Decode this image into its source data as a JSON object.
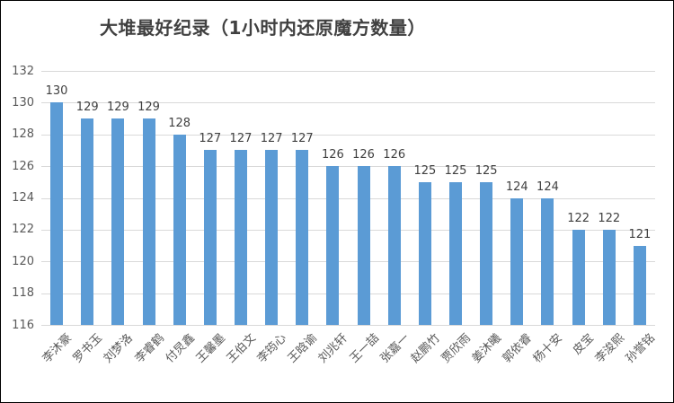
{
  "window": {
    "background": "#ffffff",
    "border_color": "#000000"
  },
  "chart_data": {
    "type": "bar",
    "title": "大堆最好纪录（1小时内还原魔方数量）",
    "categories": [
      "李沐豪",
      "罗书玉",
      "刘梦洛",
      "李睿鹤",
      "付炅鑫",
      "王馨墨",
      "王伯文",
      "李筠心",
      "王晗谕",
      "刘兆轩",
      "王一喆",
      "张嘉一",
      "赵鹏竹",
      "贾欣雨",
      "姜沐曦",
      "郭依睿",
      "杨十安",
      "皮宝",
      "李浚熙",
      "孙誉铭"
    ],
    "values": [
      130,
      129,
      129,
      129,
      128,
      127,
      127,
      127,
      127,
      126,
      126,
      126,
      125,
      125,
      125,
      124,
      124,
      122,
      122,
      121
    ],
    "xlabel": "",
    "ylabel": "",
    "ylim": [
      116,
      132
    ],
    "ytick_step": 2,
    "grid": "horizontal",
    "legend": "none",
    "data_labels": true,
    "x_label_rotation_deg": -45,
    "colors": {
      "bar": "#5b9bd5",
      "gridline": "#d9d9d9",
      "axis_tick_text": "#595959",
      "value_label_text": "#404040",
      "title_text": "#404040"
    }
  }
}
